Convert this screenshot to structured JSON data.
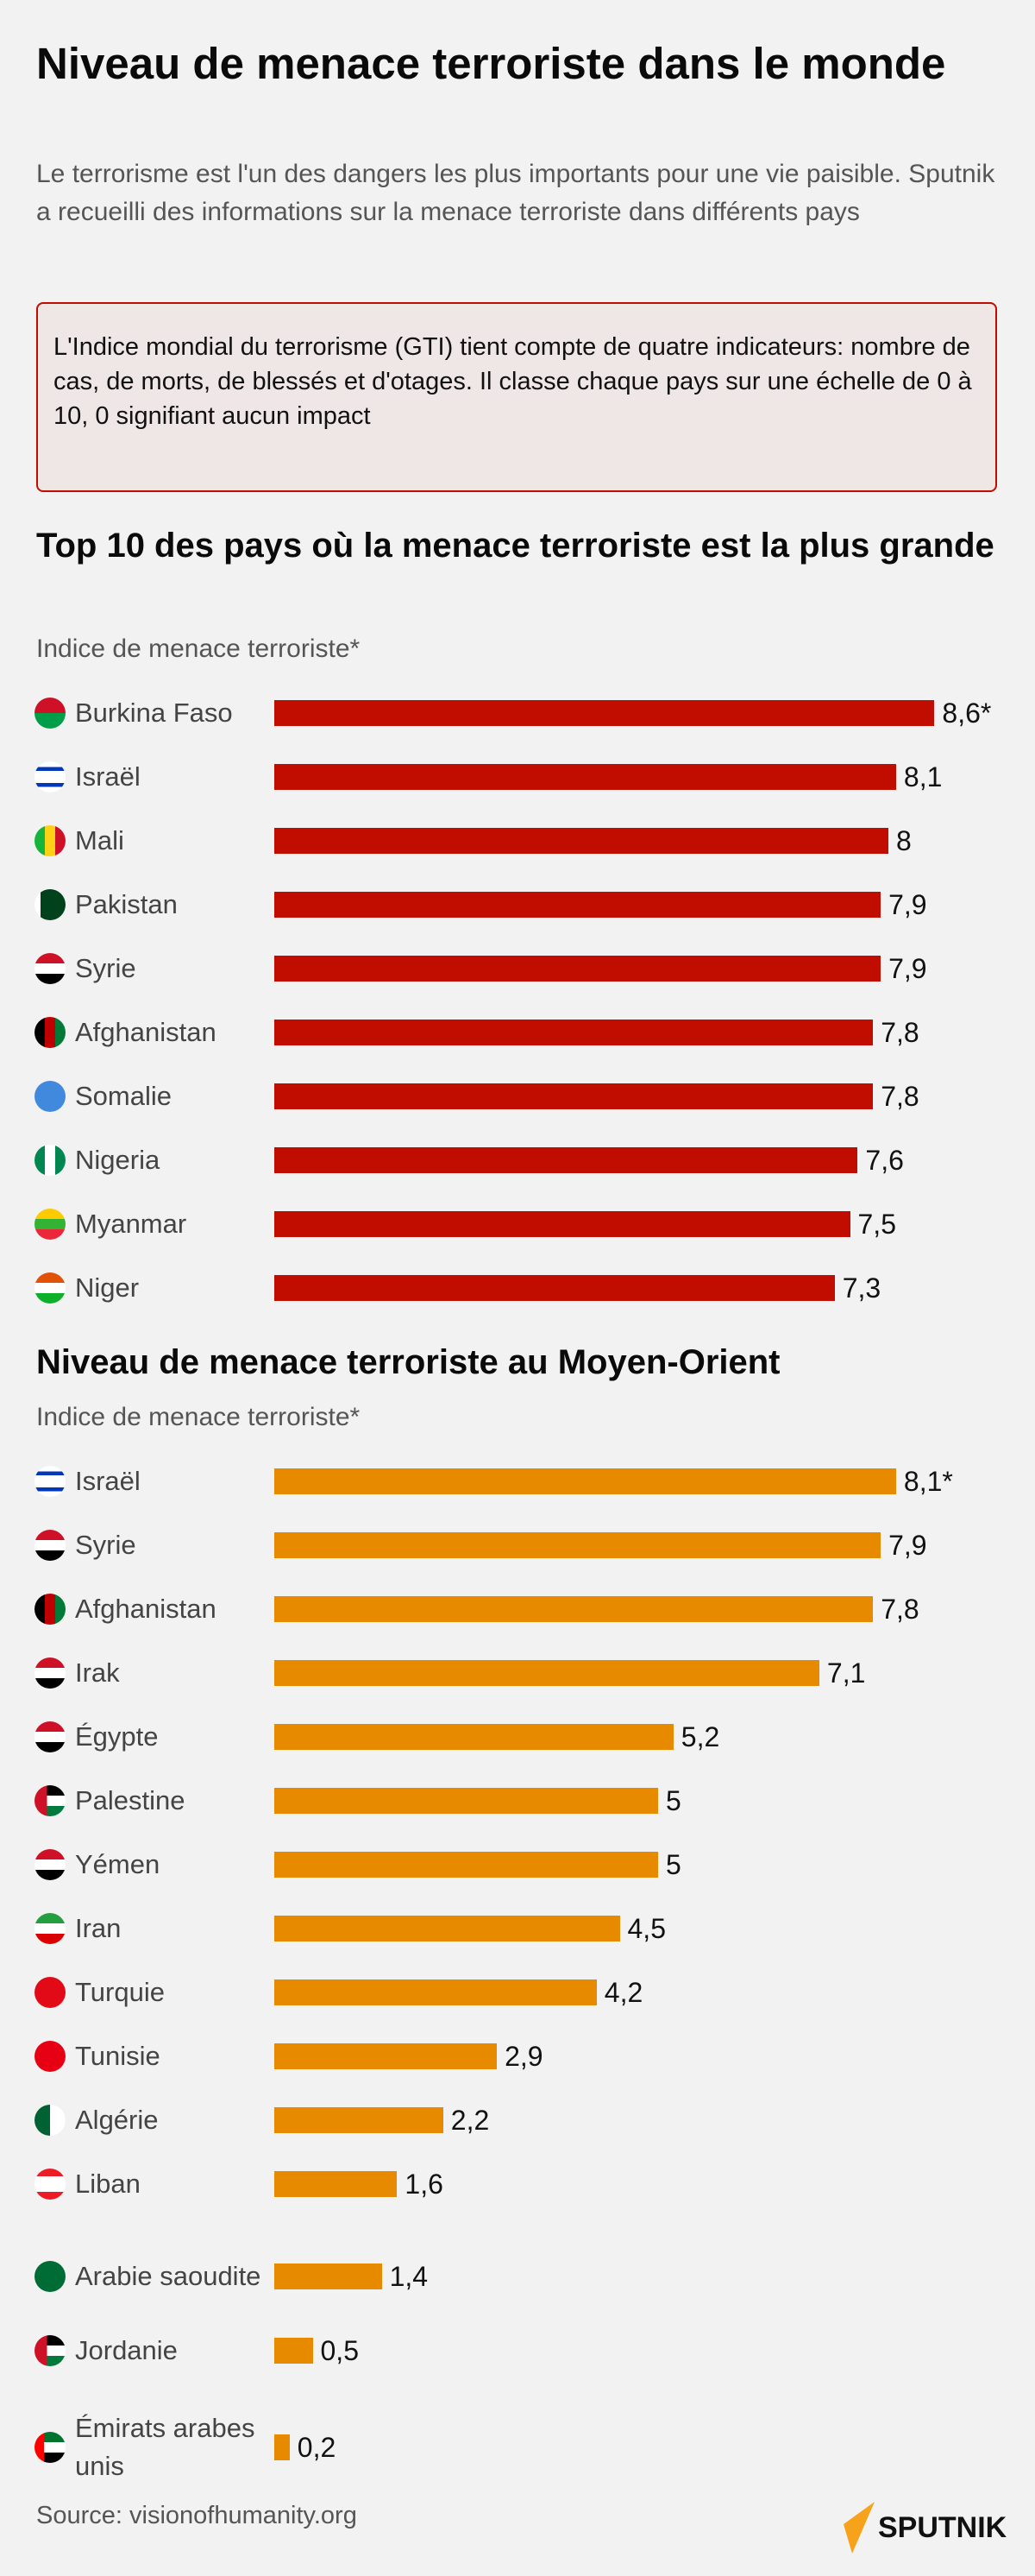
{
  "header": {
    "title": "Niveau de menace terroriste dans le monde",
    "subtitle": "Le terrorisme est l'un des dangers les plus importants pour une vie paisible. Sputnik a recueilli des informations sur la menace terroriste dans différents pays",
    "note": "L'Indice mondial du terrorisme (GTI) tient compte de quatre indicateurs: nombre de cas, de morts, de blessés et d'otages. Il classe chaque pays sur une échelle de 0 à 10, 0 signifiant aucun impact"
  },
  "colors": {
    "background": "#f2f2f2",
    "top10_bar": "#c00d00",
    "middle_east_bar": "#e88a00",
    "note_border": "#c00d00",
    "note_background": "#efe6e6"
  },
  "chart_data": [
    {
      "type": "bar",
      "orientation": "horizontal",
      "title": "Top 10 des pays où la menace terroriste est la plus grande",
      "xlabel": "Indice de menace terroriste*",
      "xlim": [
        0,
        10
      ],
      "grid": false,
      "categories": [
        "Burkina Faso",
        "Israël",
        "Mali",
        "Pakistan",
        "Syrie",
        "Afghanistan",
        "Somalie",
        "Nigeria",
        "Myanmar",
        "Niger"
      ],
      "values": [
        8.6,
        8.1,
        8,
        7.9,
        7.9,
        7.8,
        7.8,
        7.6,
        7.5,
        7.3
      ],
      "data_labels": [
        "8,6*",
        "8,1",
        "8",
        "7,9",
        "7,9",
        "7,8",
        "7,8",
        "7,6",
        "7,5",
        "7,3"
      ],
      "flag_icons": [
        "burkina-faso-flag",
        "israel-flag",
        "mali-flag",
        "pakistan-flag",
        "syria-flag",
        "afghanistan-flag",
        "somalia-flag",
        "nigeria-flag",
        "myanmar-flag",
        "niger-flag"
      ],
      "color": "#c00d00"
    },
    {
      "type": "bar",
      "orientation": "horizontal",
      "title": "Niveau de menace terroriste au Moyen-Orient",
      "xlabel": "Indice de menace terroriste*",
      "xlim": [
        0,
        10
      ],
      "grid": false,
      "categories": [
        "Israël",
        "Syrie",
        "Afghanistan",
        "Irak",
        "Égypte",
        "Palestine",
        "Yémen",
        "Iran",
        "Turquie",
        "Tunisie",
        "Algérie",
        "Liban",
        "Arabie saoudite",
        "Jordanie",
        "Émirats arabes unis"
      ],
      "values": [
        8.1,
        7.9,
        7.8,
        7.1,
        5.2,
        5,
        5,
        4.5,
        4.2,
        2.9,
        2.2,
        1.6,
        1.4,
        0.5,
        0.2
      ],
      "data_labels": [
        "8,1*",
        "7,9",
        "7,8",
        "7,1",
        "5,2",
        "5",
        "5",
        "4,5",
        "4,2",
        "2,9",
        "2,2",
        "1,6",
        "1,4",
        "0,5",
        "0,2"
      ],
      "flag_icons": [
        "israel-flag",
        "syria-flag",
        "afghanistan-flag",
        "iraq-flag",
        "egypt-flag",
        "palestine-flag",
        "yemen-flag",
        "iran-flag",
        "turkey-flag",
        "tunisia-flag",
        "algeria-flag",
        "lebanon-flag",
        "saudi-arabia-flag",
        "jordan-flag",
        "uae-flag"
      ],
      "color": "#e88a00"
    }
  ],
  "footer": {
    "source": "Source: visionofhumanity.org",
    "logo": "SPUTNIK"
  }
}
